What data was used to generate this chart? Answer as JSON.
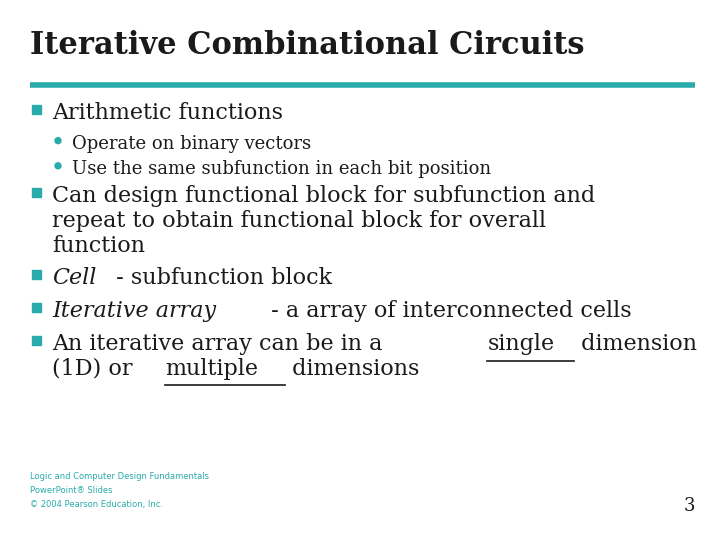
{
  "title": "Iterative Combinational Circuits",
  "title_color": "#1a1a1a",
  "title_fontsize": 22,
  "separator_color": "#2aabab",
  "background_color": "#ffffff",
  "bullet_color": "#2aabab",
  "text_color": "#1a1a1a",
  "footer_color": "#2aabab",
  "footer_lines": [
    "Logic and Computer Design Fundamentals",
    "PowerPoint® Slides",
    "© 2004 Pearson Education, Inc."
  ],
  "page_number": "3",
  "items": [
    {
      "level": 1,
      "parts": [
        {
          "text": "Arithmetic functions",
          "bold": false,
          "italic": false,
          "underline": false
        }
      ],
      "fontsize": 16
    },
    {
      "level": 2,
      "parts": [
        {
          "text": "Operate on binary vectors",
          "bold": false,
          "italic": false,
          "underline": false
        }
      ],
      "fontsize": 13
    },
    {
      "level": 2,
      "parts": [
        {
          "text": "Use the same subfunction in each bit position",
          "bold": false,
          "italic": false,
          "underline": false
        }
      ],
      "fontsize": 13
    },
    {
      "level": 1,
      "parts": [
        {
          "text": "Can design functional block for subfunction and",
          "bold": false,
          "italic": false,
          "underline": false
        }
      ],
      "fontsize": 16,
      "continuation": [
        [
          {
            "text": "repeat to obtain functional block for overall",
            "bold": false,
            "italic": false,
            "underline": false
          }
        ],
        [
          {
            "text": "function",
            "bold": false,
            "italic": false,
            "underline": false
          }
        ]
      ]
    },
    {
      "level": 1,
      "parts": [
        {
          "text": "Cell",
          "bold": false,
          "italic": true,
          "underline": false
        },
        {
          "text": " - subfunction block",
          "bold": false,
          "italic": false,
          "underline": false
        }
      ],
      "fontsize": 16
    },
    {
      "level": 1,
      "parts": [
        {
          "text": "Iterative array",
          "bold": false,
          "italic": true,
          "underline": false
        },
        {
          "text": " - a array of interconnected cells",
          "bold": false,
          "italic": false,
          "underline": false
        }
      ],
      "fontsize": 16
    },
    {
      "level": 1,
      "parts": [
        {
          "text": "An iterative array can be in a ",
          "bold": false,
          "italic": false,
          "underline": false
        },
        {
          "text": "single",
          "bold": false,
          "italic": false,
          "underline": true
        },
        {
          "text": " dimension",
          "bold": false,
          "italic": false,
          "underline": false
        }
      ],
      "fontsize": 16,
      "continuation": [
        [
          {
            "text": "(1D) or ",
            "bold": false,
            "italic": false,
            "underline": false
          },
          {
            "text": "multiple",
            "bold": false,
            "italic": false,
            "underline": true
          },
          {
            "text": " dimensions",
            "bold": false,
            "italic": false,
            "underline": false
          }
        ]
      ]
    }
  ]
}
